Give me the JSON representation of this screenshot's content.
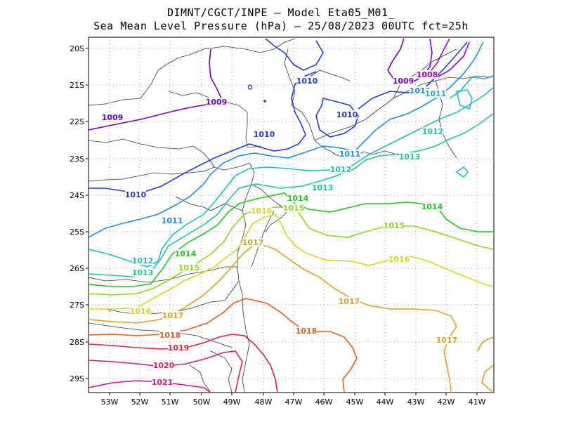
{
  "title_line1": "DIMNT/CGCT/INPE –  Model Eta05_M01_",
  "title_line2": "Sea Mean Level Pressure (hPa) – 25/08/2023 00UTC fct=25h",
  "y_ticks": [
    "20S",
    "21S",
    "22S",
    "23S",
    "24S",
    "25S",
    "26S",
    "27S",
    "28S",
    "29S"
  ],
  "x_ticks": [
    "53W",
    "52W",
    "51W",
    "50W",
    "49W",
    "48W",
    "47W",
    "46W",
    "45W",
    "44W",
    "43W",
    "42W",
    "41W"
  ],
  "contour_labels": [
    {
      "text": "1009",
      "color": "#7a00cc"
    },
    {
      "text": "1009",
      "color": "#7a00cc"
    },
    {
      "text": "1009",
      "color": "#7a00cc"
    },
    {
      "text": "1008",
      "color": "#a000c8"
    },
    {
      "text": "1010",
      "color": "#1f3fd6"
    },
    {
      "text": "1010",
      "color": "#1f3fd6"
    },
    {
      "text": "1010",
      "color": "#1f3fd6"
    },
    {
      "text": "1010",
      "color": "#1f3fd6"
    },
    {
      "text": "1011",
      "color": "#1f8fe6"
    },
    {
      "text": "1011",
      "color": "#1f8fe6"
    },
    {
      "text": "1011",
      "color": "#1f8fe6"
    },
    {
      "text": "1011",
      "color": "#1fb0d8"
    },
    {
      "text": "1012",
      "color": "#1fc0c0"
    },
    {
      "text": "1012",
      "color": "#1fc0c0"
    },
    {
      "text": "1012",
      "color": "#1fc0c0"
    },
    {
      "text": "1013",
      "color": "#1fc89a"
    },
    {
      "text": "1013",
      "color": "#1fc89a"
    },
    {
      "text": "1013",
      "color": "#1fc89a"
    },
    {
      "text": "1014",
      "color": "#1fc81f"
    },
    {
      "text": "1014",
      "color": "#1fc81f"
    },
    {
      "text": "1014",
      "color": "#1fc81f"
    },
    {
      "text": "1015",
      "color": "#8fd61f"
    },
    {
      "text": "1015",
      "color": "#8fd61f"
    },
    {
      "text": "1015",
      "color": "#8fd61f"
    },
    {
      "text": "1016",
      "color": "#d6d61f"
    },
    {
      "text": "1016",
      "color": "#d6d61f"
    },
    {
      "text": "1016",
      "color": "#d6d61f"
    },
    {
      "text": "1017",
      "color": "#e0a020"
    },
    {
      "text": "1017",
      "color": "#e0a020"
    },
    {
      "text": "1017",
      "color": "#e0a020"
    },
    {
      "text": "1017",
      "color": "#e0a020"
    },
    {
      "text": "1018",
      "color": "#e06020"
    },
    {
      "text": "1018",
      "color": "#e06020"
    },
    {
      "text": "1019",
      "color": "#e8203a"
    },
    {
      "text": "1020",
      "color": "#e01a70"
    },
    {
      "text": "1021",
      "color": "#e0108a"
    }
  ]
}
